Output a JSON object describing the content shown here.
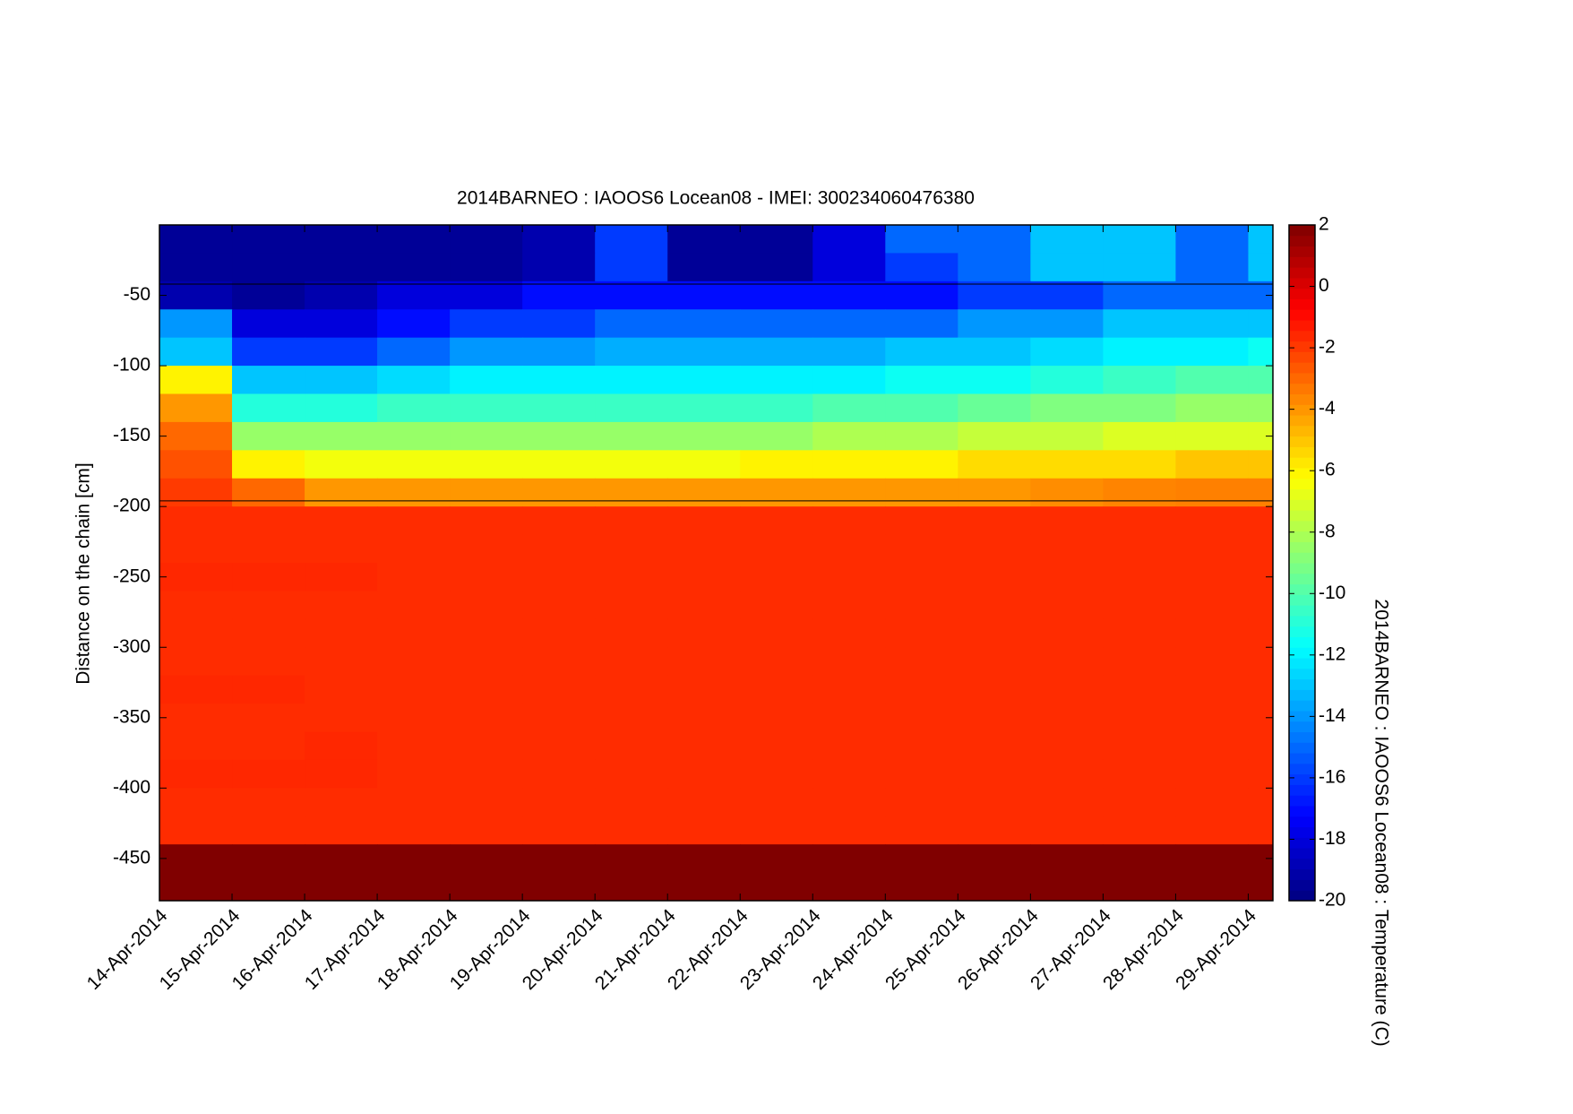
{
  "chart_data": {
    "type": "heatmap",
    "title": "2014BARNEO : IAOOS6  Locean08 - IMEI: 300234060476380",
    "ylabel": "Distance on the chain [cm]",
    "colorbar_label": "2014BARNEO : IAOOS6 Locean08 : Temperature (C)",
    "colormap": "jet",
    "x": [
      "14-Apr-2014",
      "15-Apr-2014",
      "16-Apr-2014",
      "17-Apr-2014",
      "18-Apr-2014",
      "19-Apr-2014",
      "20-Apr-2014",
      "21-Apr-2014",
      "22-Apr-2014",
      "23-Apr-2014",
      "24-Apr-2014",
      "25-Apr-2014",
      "26-Apr-2014",
      "27-Apr-2014",
      "28-Apr-2014",
      "29-Apr-2014"
    ],
    "y": [
      -10,
      -30,
      -50,
      -70,
      -90,
      -110,
      -130,
      -150,
      -170,
      -190,
      -210,
      -230,
      -250,
      -270,
      -290,
      -310,
      -330,
      -350,
      -370,
      -390,
      -410,
      -430,
      -450,
      -470
    ],
    "z": [
      [
        -19.5,
        -19.5,
        -19.5,
        -19.5,
        -19.5,
        -19,
        -16,
        -19.5,
        -19.5,
        -18,
        -15,
        -15,
        -13,
        -13,
        -15,
        -13
      ],
      [
        -19.5,
        -19.5,
        -19.5,
        -19.5,
        -19.5,
        -19,
        -16,
        -19.5,
        -19.5,
        -18,
        -16,
        -15,
        -13,
        -13,
        -15,
        -13
      ],
      [
        -19,
        -19.5,
        -19,
        -18,
        -18,
        -17,
        -17,
        -17,
        -17,
        -17,
        -17,
        -16,
        -16,
        -15,
        -15,
        -15
      ],
      [
        -14,
        -18,
        -18,
        -17,
        -16,
        -16,
        -15,
        -15,
        -15,
        -15,
        -15,
        -14,
        -14,
        -13,
        -13,
        -13
      ],
      [
        -13,
        -16,
        -16,
        -15,
        -14,
        -14,
        -13.5,
        -13.5,
        -13.5,
        -13.5,
        -13,
        -13,
        -12.5,
        -12,
        -12,
        -11.5
      ],
      [
        -6,
        -13,
        -13,
        -12.5,
        -12,
        -12,
        -12,
        -12,
        -12,
        -12,
        -11.5,
        -11.5,
        -11,
        -10.5,
        -10,
        -10
      ],
      [
        -4,
        -11,
        -11,
        -10.5,
        -10.5,
        -10.5,
        -10.5,
        -10.5,
        -10.5,
        -10,
        -10,
        -9.5,
        -9,
        -9,
        -8.5,
        -8.5
      ],
      [
        -3,
        -8.5,
        -8.5,
        -8.5,
        -8.5,
        -8.5,
        -8.5,
        -8.5,
        -8.5,
        -8,
        -8,
        -7.5,
        -7.5,
        -7,
        -7,
        -7
      ],
      [
        -2.5,
        -6,
        -6.5,
        -6.5,
        -6.5,
        -6.5,
        -6.5,
        -6.5,
        -6,
        -6,
        -6,
        -5.5,
        -5.5,
        -5.5,
        -5,
        -5
      ],
      [
        -2,
        -3,
        -4,
        -4,
        -4,
        -4,
        -4,
        -4,
        -4,
        -4,
        -4,
        -4,
        -3.8,
        -3.6,
        -3.5,
        -3.5
      ],
      [
        -1.7,
        -1.7,
        -1.7,
        -1.7,
        -1.7,
        -1.7,
        -1.7,
        -1.7,
        -1.7,
        -1.7,
        -1.7,
        -1.7,
        -1.7,
        -1.7,
        -1.7,
        -1.7
      ],
      [
        -1.7,
        -1.7,
        -1.7,
        -1.7,
        -1.7,
        -1.7,
        -1.7,
        -1.7,
        -1.7,
        -1.7,
        -1.7,
        -1.7,
        -1.7,
        -1.7,
        -1.7,
        -1.7
      ],
      [
        -1.6,
        -1.6,
        -1.6,
        -1.7,
        -1.7,
        -1.7,
        -1.7,
        -1.7,
        -1.7,
        -1.7,
        -1.7,
        -1.7,
        -1.7,
        -1.7,
        -1.7,
        -1.7
      ],
      [
        -1.7,
        -1.7,
        -1.7,
        -1.7,
        -1.7,
        -1.7,
        -1.7,
        -1.7,
        -1.7,
        -1.7,
        -1.7,
        -1.7,
        -1.7,
        -1.7,
        -1.7,
        -1.7
      ],
      [
        -1.7,
        -1.7,
        -1.7,
        -1.7,
        -1.7,
        -1.7,
        -1.7,
        -1.7,
        -1.7,
        -1.7,
        -1.7,
        -1.7,
        -1.7,
        -1.7,
        -1.7,
        -1.7
      ],
      [
        -1.7,
        -1.7,
        -1.7,
        -1.7,
        -1.7,
        -1.7,
        -1.7,
        -1.7,
        -1.7,
        -1.7,
        -1.7,
        -1.7,
        -1.7,
        -1.7,
        -1.7,
        -1.7
      ],
      [
        -1.6,
        -1.6,
        -1.7,
        -1.7,
        -1.7,
        -1.7,
        -1.7,
        -1.7,
        -1.7,
        -1.7,
        -1.7,
        -1.7,
        -1.7,
        -1.7,
        -1.7,
        -1.7
      ],
      [
        -1.7,
        -1.7,
        -1.7,
        -1.7,
        -1.7,
        -1.7,
        -1.7,
        -1.7,
        -1.7,
        -1.7,
        -1.7,
        -1.7,
        -1.7,
        -1.7,
        -1.7,
        -1.7
      ],
      [
        -1.7,
        -1.7,
        -1.6,
        -1.7,
        -1.7,
        -1.7,
        -1.7,
        -1.7,
        -1.7,
        -1.7,
        -1.7,
        -1.7,
        -1.7,
        -1.7,
        -1.7,
        -1.7
      ],
      [
        -1.6,
        -1.6,
        -1.6,
        -1.7,
        -1.7,
        -1.7,
        -1.7,
        -1.7,
        -1.7,
        -1.7,
        -1.7,
        -1.7,
        -1.7,
        -1.7,
        -1.7,
        -1.7
      ],
      [
        -1.7,
        -1.7,
        -1.7,
        -1.7,
        -1.7,
        -1.7,
        -1.7,
        -1.7,
        -1.7,
        -1.7,
        -1.7,
        -1.7,
        -1.7,
        -1.7,
        -1.7,
        -1.7
      ],
      [
        -1.7,
        -1.7,
        -1.7,
        -1.7,
        -1.7,
        -1.7,
        -1.7,
        -1.7,
        -1.7,
        -1.7,
        -1.7,
        -1.7,
        -1.7,
        -1.7,
        -1.7,
        -1.7
      ],
      [
        2,
        2,
        2,
        2,
        2,
        2,
        2,
        2,
        2,
        2,
        2,
        2,
        2,
        2,
        2,
        2
      ],
      [
        2,
        2,
        2,
        2,
        2,
        2,
        2,
        2,
        2,
        2,
        2,
        2,
        2,
        2,
        2,
        2
      ]
    ],
    "hlines": [
      -42,
      -196
    ],
    "ylim": [
      -480,
      0
    ],
    "yticks": [
      -50,
      -100,
      -150,
      -200,
      -250,
      -300,
      -350,
      -400,
      -450
    ],
    "clim": [
      -20,
      2
    ],
    "cticks": [
      -20,
      -18,
      -16,
      -14,
      -12,
      -10,
      -8,
      -6,
      -4,
      -2,
      0,
      2
    ]
  }
}
